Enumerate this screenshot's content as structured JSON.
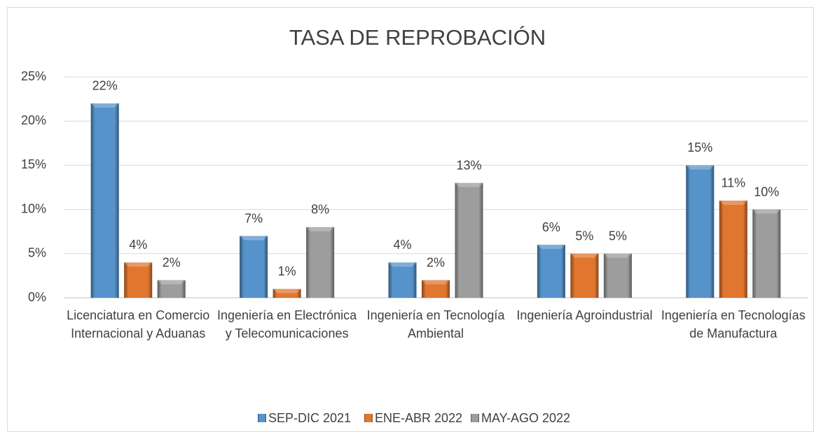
{
  "chart_data": {
    "type": "bar",
    "title": "TASA DE REPROBACIÓN",
    "categories": [
      "Licenciatura en Comercio Internacional y Aduanas",
      "Ingeniería en Electrónica y Telecomunicaciones",
      "Ingeniería en Tecnología Ambiental",
      "Ingeniería Agroindustrial",
      "Ingeniería en Tecnologías de Manufactura"
    ],
    "series": [
      {
        "name": "SEP-DIC 2021",
        "color": "#5b9bd5",
        "values": [
          22,
          7,
          4,
          6,
          15
        ],
        "value_labels": [
          "22%",
          "7%",
          "4%",
          "6%",
          "15%"
        ]
      },
      {
        "name": "ENE-ABR 2022",
        "color": "#ed7d31",
        "values": [
          4,
          1,
          2,
          5,
          11
        ],
        "value_labels": [
          "4%",
          "1%",
          "2%",
          "5%",
          "11%"
        ]
      },
      {
        "name": "MAY-AGO 2022",
        "color": "#a5a5a5",
        "values": [
          2,
          8,
          13,
          5,
          10
        ],
        "value_labels": [
          "2%",
          "8%",
          "13%",
          "5%",
          "10%"
        ]
      }
    ],
    "ylim": [
      0,
      25
    ],
    "yticks": [
      {
        "value": 0,
        "label": "0%"
      },
      {
        "value": 5,
        "label": "5%"
      },
      {
        "value": 10,
        "label": "10%"
      },
      {
        "value": 15,
        "label": "15%"
      },
      {
        "value": 20,
        "label": "20%"
      },
      {
        "value": 25,
        "label": "25%"
      }
    ],
    "grid": true,
    "legend": "bottom"
  }
}
